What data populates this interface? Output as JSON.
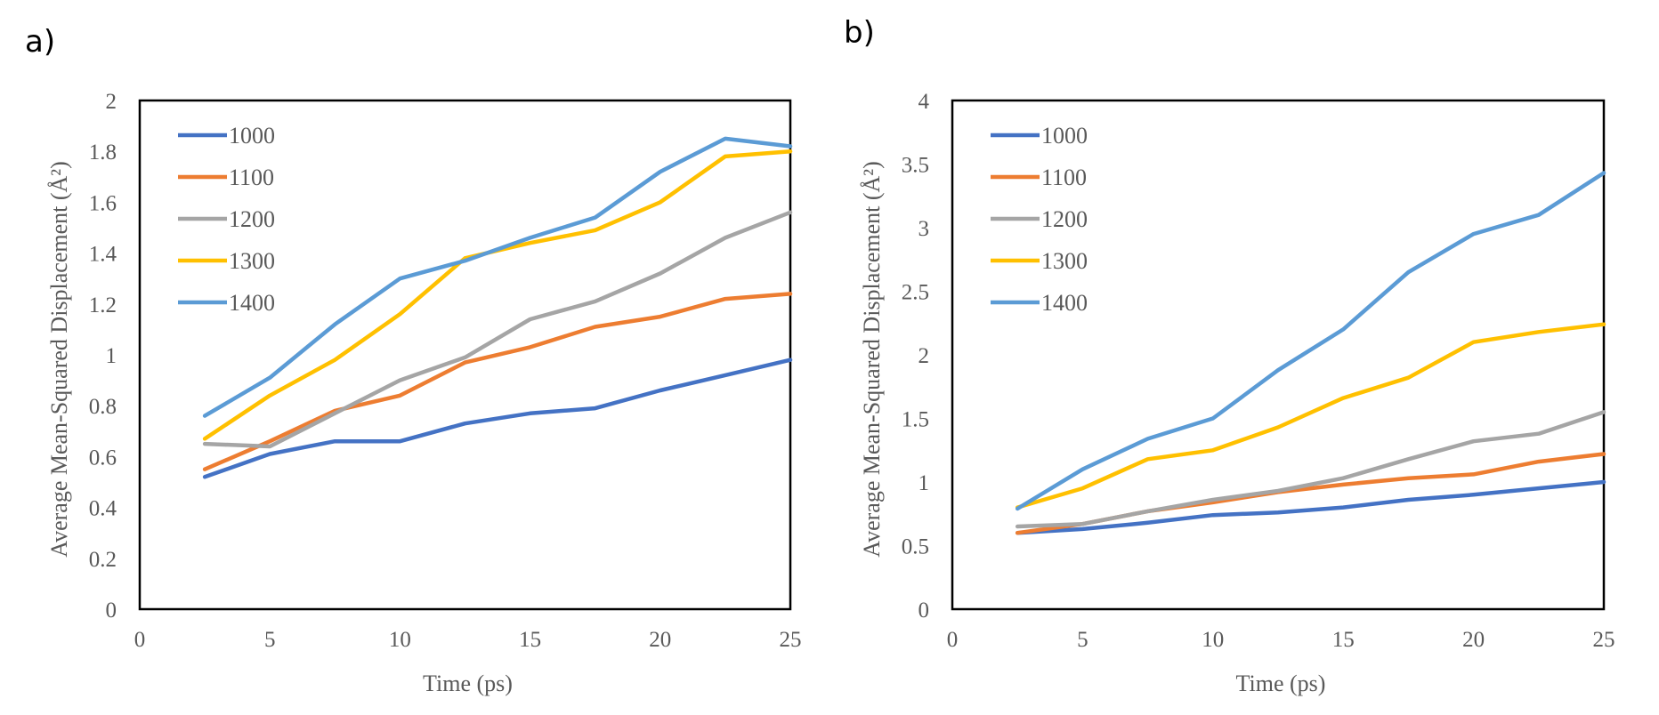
{
  "panels": [
    "a)",
    "b)"
  ],
  "chart_data": [
    {
      "type": "line",
      "panel": "a)",
      "xlabel": "Time (ps)",
      "ylabel": "Average Mean-Squared Displacement (Å²)",
      "xlim": [
        0,
        25
      ],
      "ylim": [
        0,
        2
      ],
      "xticks": [
        "0",
        "5",
        "10",
        "15",
        "20",
        "25"
      ],
      "yticks": [
        "0",
        "0.2",
        "0.4",
        "0.6",
        "0.8",
        "1",
        "1.2",
        "1.4",
        "1.6",
        "1.8",
        "2"
      ],
      "grid": false,
      "legend": "top-left",
      "x": [
        2.5,
        5,
        7.5,
        10,
        12.5,
        15,
        17.5,
        20,
        22.5,
        25
      ],
      "series": [
        {
          "name": "1000",
          "color": "#4472C4",
          "values": [
            0.52,
            0.61,
            0.66,
            0.66,
            0.73,
            0.77,
            0.79,
            0.86,
            0.92,
            0.98
          ]
        },
        {
          "name": "1100",
          "color": "#ED7D31",
          "values": [
            0.55,
            0.66,
            0.78,
            0.84,
            0.97,
            1.03,
            1.11,
            1.15,
            1.22,
            1.24
          ]
        },
        {
          "name": "1200",
          "color": "#A5A5A5",
          "values": [
            0.65,
            0.64,
            0.77,
            0.9,
            0.99,
            1.14,
            1.21,
            1.32,
            1.46,
            1.56
          ]
        },
        {
          "name": "1300",
          "color": "#FFC000",
          "values": [
            0.67,
            0.84,
            0.98,
            1.16,
            1.38,
            1.44,
            1.49,
            1.6,
            1.78,
            1.8
          ]
        },
        {
          "name": "1400",
          "color": "#5B9BD5",
          "values": [
            0.76,
            0.91,
            1.12,
            1.3,
            1.37,
            1.46,
            1.54,
            1.72,
            1.85,
            1.82
          ]
        }
      ]
    },
    {
      "type": "line",
      "panel": "b)",
      "xlabel": "Time (ps)",
      "ylabel": "Average Mean-Squared Displacement (Å²)",
      "xlim": [
        0,
        25
      ],
      "ylim": [
        0,
        4
      ],
      "xticks": [
        "0",
        "5",
        "10",
        "15",
        "20",
        "25"
      ],
      "yticks": [
        "0",
        "0.5",
        "1",
        "1.5",
        "2",
        "2.5",
        "3",
        "3.5",
        "4"
      ],
      "grid": false,
      "legend": "top-left",
      "x": [
        2.5,
        5,
        7.5,
        10,
        12.5,
        15,
        17.5,
        20,
        22.5,
        25
      ],
      "series": [
        {
          "name": "1000",
          "color": "#4472C4",
          "values": [
            0.6,
            0.63,
            0.68,
            0.74,
            0.76,
            0.8,
            0.86,
            0.9,
            0.95,
            1.0
          ]
        },
        {
          "name": "1100",
          "color": "#ED7D31",
          "values": [
            0.6,
            0.67,
            0.77,
            0.84,
            0.92,
            0.98,
            1.03,
            1.06,
            1.16,
            1.22
          ]
        },
        {
          "name": "1200",
          "color": "#A5A5A5",
          "values": [
            0.65,
            0.67,
            0.77,
            0.86,
            0.93,
            1.03,
            1.18,
            1.32,
            1.38,
            1.55
          ]
        },
        {
          "name": "1300",
          "color": "#FFC000",
          "values": [
            0.8,
            0.95,
            1.18,
            1.25,
            1.43,
            1.66,
            1.82,
            2.1,
            2.18,
            2.24
          ]
        },
        {
          "name": "1400",
          "color": "#5B9BD5",
          "values": [
            0.79,
            1.1,
            1.34,
            1.5,
            1.88,
            2.2,
            2.65,
            2.95,
            3.1,
            3.43
          ]
        }
      ]
    }
  ]
}
